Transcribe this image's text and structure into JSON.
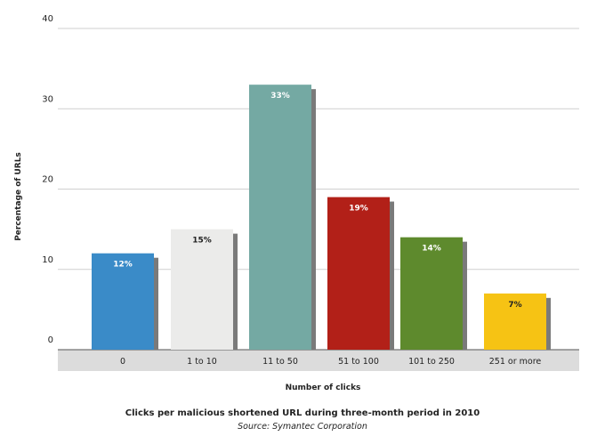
{
  "chart_data": {
    "type": "bar",
    "categories": [
      "0",
      "1 to 10",
      "11 to 50",
      "51 to 100",
      "101 to 250",
      "251 or more"
    ],
    "values": [
      12,
      15,
      33,
      19,
      14,
      7
    ],
    "data_labels": [
      "12%",
      "15%",
      "33%",
      "19%",
      "14%",
      "7%"
    ],
    "colors": [
      "#3a8bc8",
      "#ebebea",
      "#74a9a3",
      "#b22018",
      "#5e8a2d",
      "#f6c314"
    ],
    "label_colors": [
      "#ffffff",
      "#222222",
      "#ffffff",
      "#ffffff",
      "#ffffff",
      "#222222"
    ],
    "ylim": [
      0,
      40
    ],
    "yticks": [
      "0",
      "10",
      "20",
      "30",
      "40"
    ],
    "xlabel": "Number of clicks",
    "ylabel": "Percentage of URLs",
    "grid": true,
    "title": "Clicks per malicious shortened URL during three-month period in 2010",
    "source": "Source: Symantec Corporation"
  }
}
